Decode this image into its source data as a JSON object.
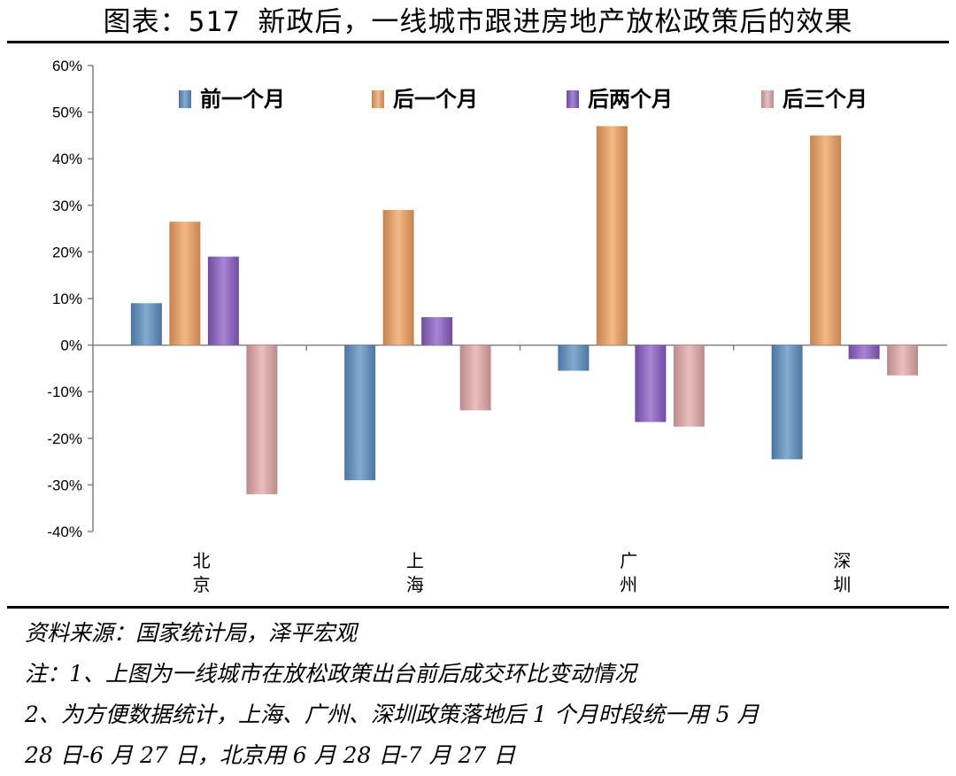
{
  "title": "图表：517 新政后，一线城市跟进房地产放松政策后的效果",
  "notes": {
    "source": "资料来源：国家统计局，泽平宏观",
    "note1": "注：1、上图为一线城市在放松政策出台前后成交环比变动情况",
    "note2_line1": "2、为方便数据统计，上海、广州、深圳政策落地后 1 个月时段统一用 5 月",
    "note2_line2": "28 日-6 月 27 日，北京用 6 月 28 日-7 月 27 日"
  },
  "chart_data": {
    "type": "bar",
    "categories": [
      "北京",
      "上海",
      "广州",
      "深圳"
    ],
    "series": [
      {
        "name": "前一个月",
        "color": "#5b8fc2",
        "values": [
          9,
          -29,
          -5.5,
          -24.5
        ]
      },
      {
        "name": "后一个月",
        "color": "#f0a060",
        "values": [
          26.5,
          29,
          47,
          45
        ]
      },
      {
        "name": "后两个月",
        "color": "#8a5cc4",
        "values": [
          19,
          6,
          -16.5,
          -3
        ]
      },
      {
        "name": "后三个月",
        "color": "#e3aaa8",
        "values": [
          -32,
          -14,
          -17.5,
          -6.5
        ]
      }
    ],
    "yticks": [
      "60%",
      "50%",
      "40%",
      "30%",
      "20%",
      "10%",
      "0%",
      "-10%",
      "-20%",
      "-30%",
      "-40%"
    ],
    "ylim": [
      -40,
      60
    ],
    "legend_position": "top",
    "grid": false
  }
}
